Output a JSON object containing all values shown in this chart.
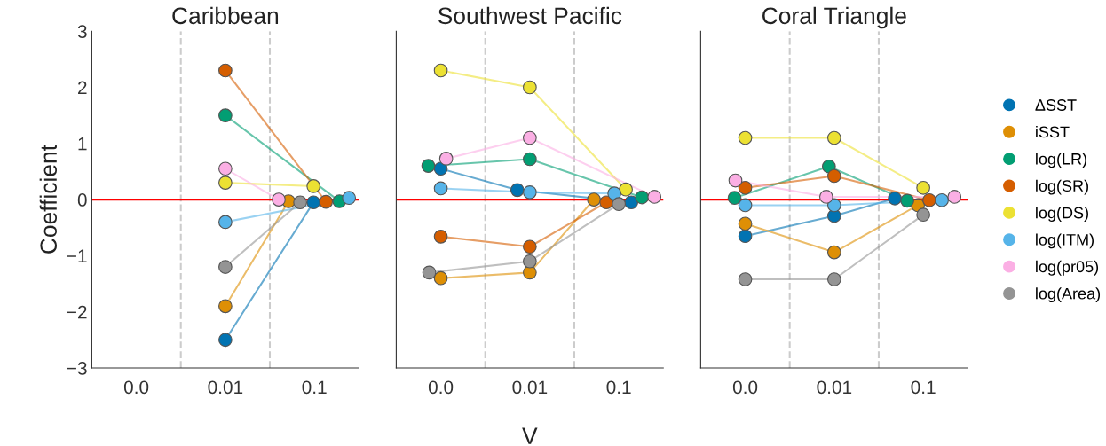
{
  "chart_data": [
    {
      "type": "line",
      "title": "Caribbean",
      "ylabel": "Coefficient",
      "log": "x",
      "xlim": [
        0.000316,
        0.316
      ],
      "xticks": [
        {
          "value": 0.001,
          "label": "0.0"
        },
        {
          "value": 0.01,
          "label": "0.01"
        },
        {
          "value": 0.1,
          "label": "0.1"
        }
      ],
      "ylim": [
        -3,
        3
      ],
      "yticks": [
        {
          "value": -3,
          "label": "−3"
        },
        {
          "value": -2,
          "label": "−2"
        },
        {
          "value": -1,
          "label": "−1"
        },
        0,
        1,
        2,
        3
      ],
      "marker": "circle",
      "legend": "right",
      "grid": false,
      "ref_lines": [
        {
          "axis": "y",
          "value": 0,
          "color": "#ff0000",
          "line_style": "solid"
        },
        {
          "axis": "x",
          "value": 0.00316,
          "color": "#cccccc",
          "line_style": "dashed"
        },
        {
          "axis": "x",
          "value": 0.0316,
          "color": "#cccccc",
          "line_style": "dashed"
        }
      ],
      "series": [
        {
          "name": "ΔSST",
          "color": "#0173b2",
          "x": [
            0.01,
            0.0977
          ],
          "values": [
            -2.5,
            -0.05
          ]
        },
        {
          "name": "iSST",
          "color": "#de8f05",
          "x": [
            0.01,
            0.0513
          ],
          "values": [
            -1.9,
            -0.03
          ]
        },
        {
          "name": "log(LR)",
          "color": "#029e73",
          "x": [
            0.01,
            0.191
          ],
          "values": [
            1.5,
            -0.03
          ]
        },
        {
          "name": "log(SR)",
          "color": "#d55e00",
          "x": [
            0.01,
            0.135
          ],
          "values": [
            2.3,
            -0.04
          ]
        },
        {
          "name": "log(DS)",
          "color": "#ece133",
          "x": [
            0.01,
            0.0977
          ],
          "values": [
            0.3,
            0.24
          ]
        },
        {
          "name": "log(ITM)",
          "color": "#56b4e9",
          "x": [
            0.01,
            0.245
          ],
          "values": [
            -0.4,
            0.03
          ]
        },
        {
          "name": "log(pr05)",
          "color": "#fbafe4",
          "x": [
            0.01,
            0.0398
          ],
          "values": [
            0.55,
            0
          ]
        },
        {
          "name": "log(Area)",
          "color": "#949494",
          "x": [
            0.01,
            0.0692
          ],
          "values": [
            -1.2,
            -0.05
          ]
        }
      ]
    },
    {
      "type": "line",
      "title": "Southwest Pacific",
      "xlabel": "V",
      "log": "x",
      "xlim": [
        0.000316,
        0.316
      ],
      "xticks": [
        {
          "value": 0.001,
          "label": "0.0"
        },
        {
          "value": 0.01,
          "label": "0.01"
        },
        {
          "value": 0.1,
          "label": "0.1"
        }
      ],
      "ylim": [
        -3,
        3
      ],
      "tick_labels": "x",
      "marker": "circle",
      "grid": false,
      "ref_lines": [
        {
          "axis": "y",
          "value": 0,
          "color": "#ff0000",
          "line_style": "solid"
        },
        {
          "axis": "x",
          "value": 0.00316,
          "color": "#cccccc",
          "line_style": "dashed"
        },
        {
          "axis": "x",
          "value": 0.0316,
          "color": "#cccccc",
          "line_style": "dashed"
        }
      ],
      "series": [
        {
          "color": "#0173b2",
          "x": [
            0.001,
            0.00724,
            0.138
          ],
          "values": [
            0.55,
            0.17,
            -0.05
          ]
        },
        {
          "color": "#de8f05",
          "x": [
            0.001,
            0.01,
            0.0525
          ],
          "values": [
            -1.4,
            -1.3,
            0
          ]
        },
        {
          "color": "#029e73",
          "x": [
            0.000724,
            0.01,
            0.182
          ],
          "values": [
            0.6,
            0.72,
            0.04
          ]
        },
        {
          "color": "#d55e00",
          "x": [
            0.001,
            0.01,
            0.0724
          ],
          "values": [
            -0.66,
            -0.84,
            -0.05
          ]
        },
        {
          "color": "#ece133",
          "x": [
            0.001,
            0.01,
            0.12
          ],
          "values": [
            2.3,
            2.0,
            0.18
          ]
        },
        {
          "color": "#56b4e9",
          "x": [
            0.001,
            0.01,
            0.0891
          ],
          "values": [
            0.2,
            0.13,
            0.11
          ]
        },
        {
          "color": "#fbafe4",
          "x": [
            0.00115,
            0.01,
            0.251
          ],
          "values": [
            0.73,
            1.1,
            0.05
          ]
        },
        {
          "color": "#949494",
          "x": [
            0.000741,
            0.01,
            0.1
          ],
          "values": [
            -1.3,
            -1.1,
            -0.08
          ]
        }
      ]
    },
    {
      "type": "line",
      "title": "Coral Triangle",
      "log": "x",
      "xlim": [
        0.000316,
        0.316
      ],
      "xticks": [
        {
          "value": 0.001,
          "label": "0.0"
        },
        {
          "value": 0.01,
          "label": "0.01"
        },
        {
          "value": 0.1,
          "label": "0.1"
        }
      ],
      "ylim": [
        -3,
        3
      ],
      "tick_labels": "x",
      "marker": "circle",
      "grid": false,
      "ref_lines": [
        {
          "axis": "y",
          "value": 0,
          "color": "#ff0000",
          "line_style": "solid"
        },
        {
          "axis": "x",
          "value": 0.00316,
          "color": "#cccccc",
          "line_style": "dashed"
        },
        {
          "axis": "x",
          "value": 0.0316,
          "color": "#cccccc",
          "line_style": "dashed"
        }
      ],
      "series": [
        {
          "color": "#0173b2",
          "x": [
            0.001,
            0.01,
            0.0479
          ],
          "values": [
            -0.65,
            -0.29,
            0.02
          ]
        },
        {
          "color": "#de8f05",
          "x": [
            0.001,
            0.01,
            0.0871
          ],
          "values": [
            -0.43,
            -0.94,
            -0.1
          ]
        },
        {
          "color": "#029e73",
          "x": [
            0.000759,
            0.00871,
            0.0661
          ],
          "values": [
            0.03,
            0.59,
            -0.02
          ]
        },
        {
          "color": "#d55e00",
          "x": [
            0.001,
            0.01,
            0.117
          ],
          "values": [
            0.21,
            0.42,
            -0.01
          ]
        },
        {
          "color": "#ece133",
          "x": [
            0.001,
            0.01,
            0.1
          ],
          "values": [
            1.1,
            1.1,
            0.21
          ]
        },
        {
          "color": "#56b4e9",
          "x": [
            0.001,
            0.01,
            0.162
          ],
          "values": [
            -0.1,
            -0.1,
            -0.01
          ]
        },
        {
          "color": "#fbafe4",
          "x": [
            0.000776,
            0.00813,
            0.224
          ],
          "values": [
            0.34,
            0.05,
            0.05
          ]
        },
        {
          "color": "#949494",
          "x": [
            0.001,
            0.01,
            0.1
          ],
          "values": [
            -1.42,
            -1.42,
            -0.27
          ]
        }
      ]
    }
  ]
}
